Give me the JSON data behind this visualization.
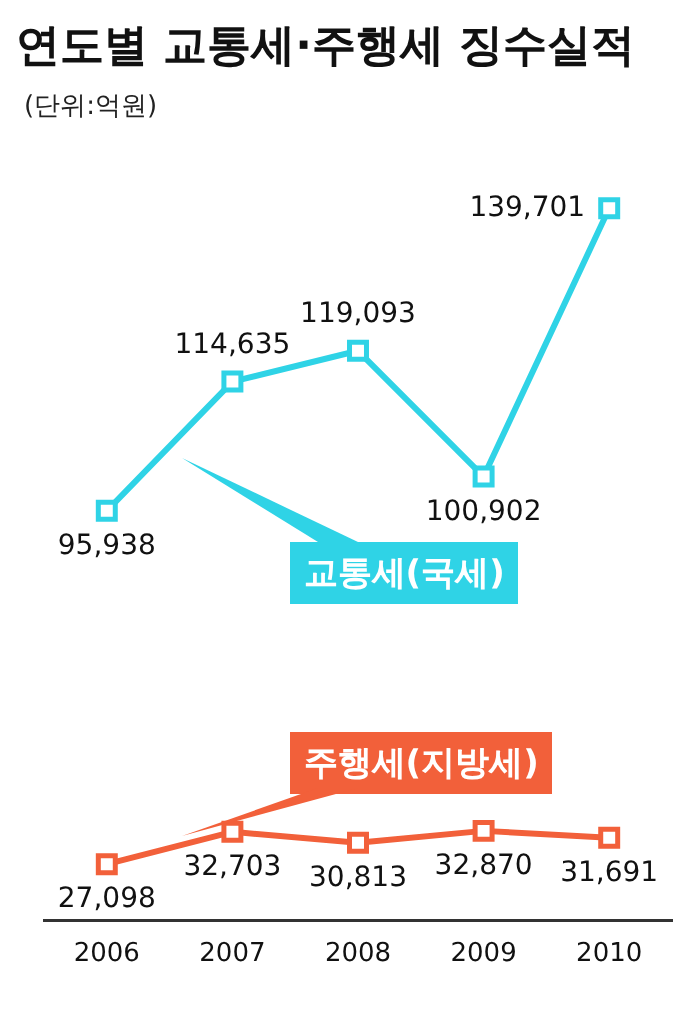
{
  "chart_data": [
    {
      "type": "line",
      "title": "연도별 교통세·주행세 징수실적",
      "annotations": [
        "(단위:억원)"
      ],
      "categories": [
        "2006",
        "2007",
        "2008",
        "2009",
        "2010"
      ],
      "tick_labels": false,
      "series": [
        {
          "name": "교통세(국세)",
          "color": "#2fd3e6",
          "values": [
            95938,
            114635,
            119093,
            100902,
            139701
          ],
          "value_labels": [
            "95,938",
            "114,635",
            "119,093",
            "100,902",
            "139,701"
          ]
        }
      ],
      "marker": "square",
      "legend": false,
      "grid": false
    },
    {
      "type": "line",
      "categories": [
        "2006",
        "2007",
        "2008",
        "2009",
        "2010"
      ],
      "series": [
        {
          "name": "주행세(지방세)",
          "color": "#f2603a",
          "values": [
            27098,
            32703,
            30813,
            32870,
            31691
          ],
          "value_labels": [
            "27,098",
            "32,703",
            "30,813",
            "32,870",
            "31,691"
          ]
        }
      ],
      "marker": "square",
      "legend": false,
      "grid": false
    }
  ]
}
